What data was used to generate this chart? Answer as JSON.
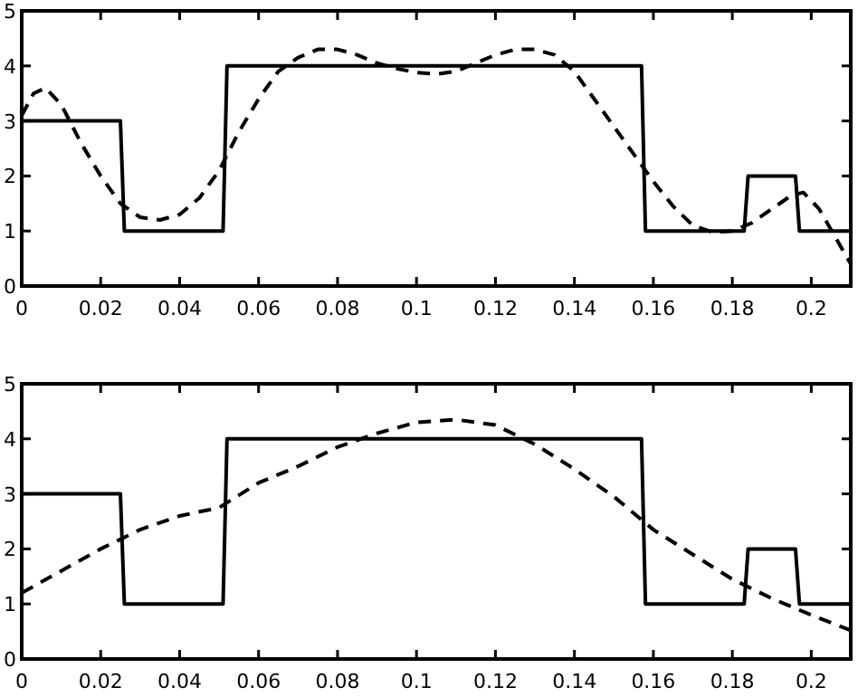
{
  "chart_data": [
    {
      "type": "line",
      "xlim": [
        0,
        0.21
      ],
      "ylim": [
        0,
        5
      ],
      "xticks": [
        0,
        0.02,
        0.04,
        0.06,
        0.08,
        0.1,
        0.12,
        0.14,
        0.16,
        0.18,
        0.2
      ],
      "yticks": [
        0,
        1,
        2,
        3,
        4,
        5
      ],
      "grid": false,
      "marker": "none",
      "series": [
        {
          "color": "#000000",
          "line_style": "solid",
          "x": [
            0,
            0.025,
            0.026,
            0.051,
            0.052,
            0.157,
            0.158,
            0.183,
            0.184,
            0.196,
            0.197,
            0.21
          ],
          "values": [
            3,
            3,
            1,
            1,
            4,
            4,
            1,
            1,
            2,
            2,
            1,
            1
          ]
        },
        {
          "color": "#000000",
          "line_style": "dashed",
          "x": [
            0,
            0.003,
            0.006,
            0.01,
            0.015,
            0.02,
            0.025,
            0.03,
            0.035,
            0.04,
            0.045,
            0.05,
            0.055,
            0.06,
            0.065,
            0.07,
            0.075,
            0.08,
            0.085,
            0.09,
            0.095,
            0.1,
            0.105,
            0.11,
            0.115,
            0.12,
            0.125,
            0.13,
            0.135,
            0.14,
            0.145,
            0.15,
            0.155,
            0.16,
            0.165,
            0.17,
            0.175,
            0.18,
            0.185,
            0.19,
            0.195,
            0.198,
            0.202,
            0.206,
            0.21
          ],
          "values": [
            3.1,
            3.5,
            3.6,
            3.3,
            2.6,
            2.0,
            1.5,
            1.25,
            1.2,
            1.3,
            1.6,
            2.1,
            2.8,
            3.4,
            3.9,
            4.15,
            4.3,
            4.3,
            4.2,
            4.05,
            3.95,
            3.88,
            3.85,
            3.9,
            4.05,
            4.2,
            4.3,
            4.3,
            4.2,
            3.9,
            3.4,
            2.9,
            2.4,
            1.9,
            1.45,
            1.1,
            0.98,
            1.0,
            1.15,
            1.4,
            1.65,
            1.7,
            1.4,
            0.9,
            0.4
          ]
        }
      ]
    },
    {
      "type": "line",
      "xlim": [
        0,
        0.21
      ],
      "ylim": [
        0,
        5
      ],
      "xticks": [
        0,
        0.02,
        0.04,
        0.06,
        0.08,
        0.1,
        0.12,
        0.14,
        0.16,
        0.18,
        0.2
      ],
      "yticks": [
        0,
        1,
        2,
        3,
        4,
        5
      ],
      "grid": false,
      "marker": "none",
      "series": [
        {
          "color": "#000000",
          "line_style": "solid",
          "x": [
            0,
            0.025,
            0.026,
            0.051,
            0.052,
            0.157,
            0.158,
            0.183,
            0.184,
            0.196,
            0.197,
            0.21
          ],
          "values": [
            3,
            3,
            1,
            1,
            4,
            4,
            1,
            1,
            2,
            2,
            1,
            1
          ]
        },
        {
          "color": "#000000",
          "line_style": "dashed",
          "x": [
            0,
            0.01,
            0.02,
            0.03,
            0.04,
            0.05,
            0.06,
            0.07,
            0.08,
            0.09,
            0.1,
            0.11,
            0.12,
            0.13,
            0.14,
            0.15,
            0.16,
            0.17,
            0.18,
            0.19,
            0.2,
            0.21
          ],
          "values": [
            1.2,
            1.6,
            2.0,
            2.35,
            2.6,
            2.75,
            3.2,
            3.5,
            3.85,
            4.1,
            4.3,
            4.35,
            4.25,
            3.9,
            3.45,
            2.95,
            2.35,
            1.9,
            1.45,
            1.1,
            0.8,
            0.52
          ]
        }
      ]
    }
  ]
}
